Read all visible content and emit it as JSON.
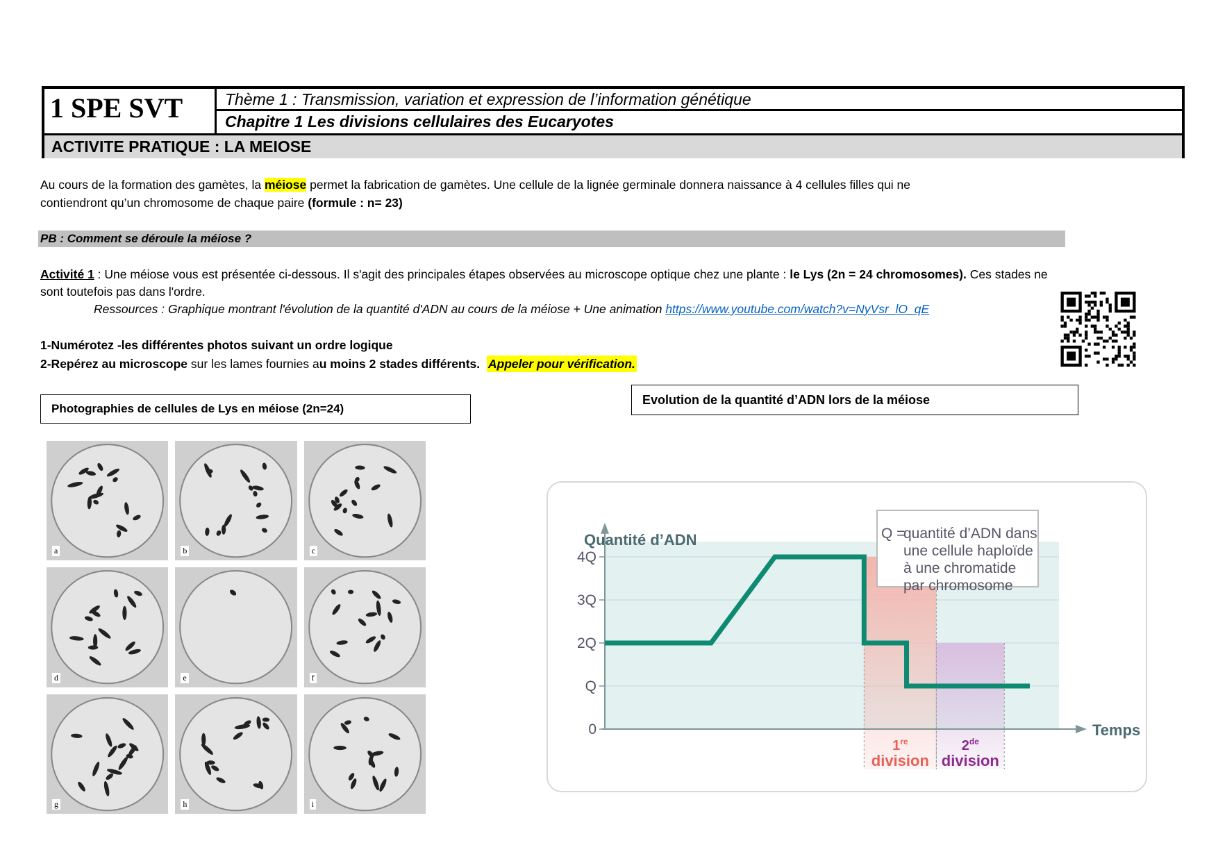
{
  "header": {
    "level": "1 SPE SVT",
    "theme": "Thème 1 : Transmission, variation et expression de l’information génétique",
    "chapter": "Chapitre 1 Les divisions cellulaires des Eucaryotes",
    "activity": "ACTIVITE PRATIQUE : LA MEIOSE"
  },
  "intro": {
    "p1_a": "Au cours de la formation des gamètes, la ",
    "p1_hl": "méiose",
    "p1_b": " permet la fabrication de gamètes. Une cellule de la lignée germinale donnera naissance à 4 cellules filles qui ne",
    "p2_a": "contiendront qu’un chromosome de chaque paire ",
    "p2_b": "(formule : n= 23)"
  },
  "pb": "PB : Comment se déroule la méiose ?",
  "activite": {
    "label": "Activité 1",
    "text_a": " : Une méiose vous est présentée ci-dessous. Il s'agit des principales étapes observées au microscope optique chez une plante : ",
    "text_bold": "le Lys (2n = 24 chromosomes).",
    "text_b": " Ces stades ne",
    "line2": "sont toutefois pas dans l'ordre.",
    "ressources": "Ressources : Graphique montrant l'évolution de la quantité d'ADN au cours de la méiose + Une animation ",
    "link": "https://www.youtube.com/watch?v=NyVsr_lO_qE"
  },
  "tasks": {
    "t1": "1-Numérotez -les différentes photos suivant un ordre logique",
    "t2_a": "2-Repérez au microscope",
    "t2_b": " sur les lames fournies a",
    "t2_c": "u moins 2 stades différents.",
    "t2_hl": "Appeler pour vérification."
  },
  "photos": {
    "caption": "Photographies de cellules de Lys en méiose (2n=24)",
    "labels": [
      "a",
      "b",
      "c",
      "d",
      "e",
      "f",
      "g",
      "h",
      "i"
    ]
  },
  "chart_title": "Evolution de la quantité d’ADN lors de la méiose",
  "chart_data": {
    "type": "line",
    "ylabel": "Quantité d’ADN",
    "xlabel": "Temps",
    "yticks": [
      "0",
      "Q",
      "2Q",
      "3Q",
      "4Q"
    ],
    "ylim": [
      0,
      4
    ],
    "series": [
      {
        "points": [
          [
            0,
            2
          ],
          [
            25,
            2
          ],
          [
            40,
            4
          ],
          [
            61,
            4
          ],
          [
            61,
            2
          ],
          [
            71,
            2
          ],
          [
            71,
            1
          ],
          [
            100,
            1
          ]
        ]
      }
    ],
    "regions": [
      {
        "label_num": "1",
        "label_sup": "re",
        "label": "division",
        "from": 61,
        "to": 78,
        "top": 4,
        "color": "#f4b6ae"
      },
      {
        "label_num": "2",
        "label_sup": "de",
        "label": "division",
        "from": 78,
        "to": 94,
        "top": 2,
        "color": "#d9bfe0"
      }
    ],
    "legend": {
      "symbol": "Q =",
      "lines": [
        "quantité d’ADN dans",
        "une cellule haploïde",
        "à une chromatide",
        "par chromosome"
      ]
    },
    "colors": {
      "line": "#0e8a73",
      "axis": "#7f9696",
      "div1": "#e8605a",
      "div2": "#8e2a8c",
      "bg": "#e3f1f1"
    }
  }
}
